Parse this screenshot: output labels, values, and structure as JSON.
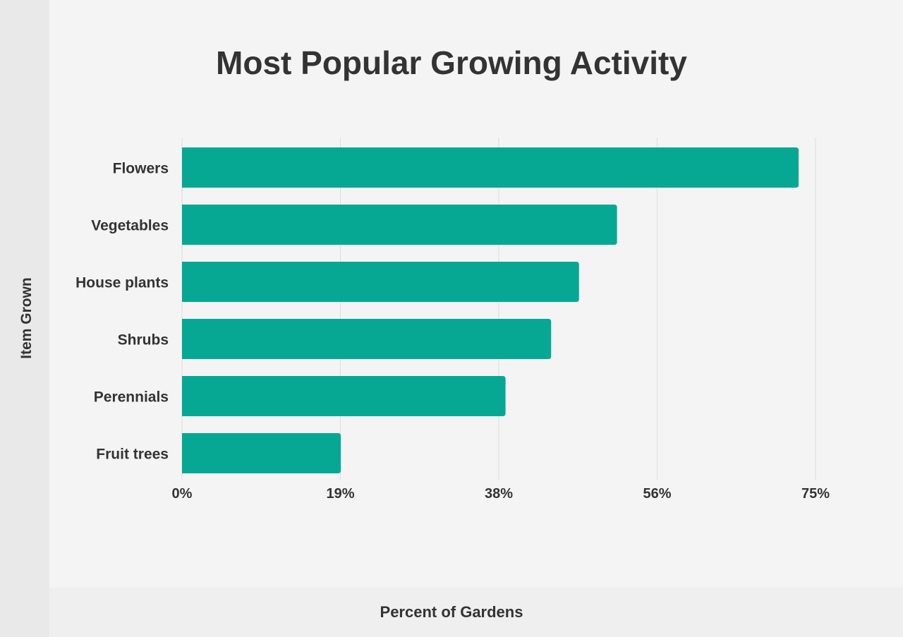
{
  "chart_data": {
    "type": "bar",
    "orientation": "horizontal",
    "title": "Most Popular Growing Activity",
    "xlabel": "Percent of Gardens",
    "ylabel": "Item Grown",
    "categories": [
      "Flowers",
      "Vegetables",
      "House plants",
      "Shrubs",
      "Perennials",
      "Fruit trees"
    ],
    "values": [
      73,
      51.5,
      47,
      43.7,
      38.3,
      18.8
    ],
    "xlim": [
      0,
      75
    ],
    "xticks": [
      0,
      18.75,
      37.5,
      56.25,
      75
    ],
    "xtick_labels": [
      "0%",
      "19%",
      "38%",
      "56%",
      "75%"
    ],
    "grid": "vertical",
    "bar_color": "#06a893"
  }
}
